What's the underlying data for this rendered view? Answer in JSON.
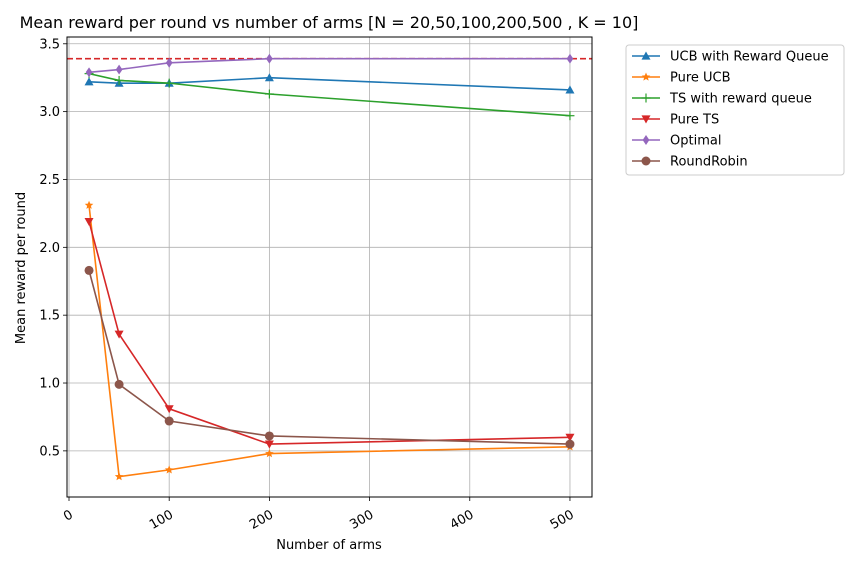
{
  "chart_data": {
    "type": "line",
    "title": "Mean reward per round vs number of arms [N = 20,50,100,200,500 , K = 10]",
    "xlabel": "Number of arms",
    "ylabel": "Mean reward per round",
    "xlim": [
      -2,
      522
    ],
    "ylim": [
      0.16,
      3.55
    ],
    "xticks": [
      0,
      100,
      200,
      300,
      400,
      500
    ],
    "yticks": [
      0.5,
      1.0,
      1.5,
      2.0,
      2.5,
      3.0,
      3.5
    ],
    "xtick_labels": [
      "0",
      "100",
      "200",
      "300",
      "400",
      "500"
    ],
    "ytick_labels": [
      "0.5",
      "1.0",
      "1.5",
      "2.0",
      "2.5",
      "3.0",
      "3.5"
    ],
    "grid": true,
    "legend_position": "outside-top-right",
    "x": [
      20,
      50,
      100,
      200,
      500
    ],
    "reference_line": {
      "y": 3.39,
      "color": "#d62728",
      "style": "dashed"
    },
    "series": [
      {
        "name": "UCB with Reward Queue",
        "color": "#1f77b4",
        "marker": "triangle-up",
        "values": [
          3.22,
          3.21,
          3.21,
          3.25,
          3.16
        ]
      },
      {
        "name": "Pure UCB",
        "color": "#ff7f0e",
        "marker": "star",
        "values": [
          2.31,
          0.31,
          0.36,
          0.48,
          0.53
        ]
      },
      {
        "name": "TS with reward queue",
        "color": "#2ca02c",
        "marker": "plus",
        "values": [
          3.28,
          3.23,
          3.21,
          3.13,
          2.97
        ]
      },
      {
        "name": "Pure TS",
        "color": "#d62728",
        "marker": "triangle-down",
        "values": [
          2.19,
          1.36,
          0.81,
          0.55,
          0.6
        ]
      },
      {
        "name": "Optimal",
        "color": "#9467bd",
        "marker": "diamond",
        "values": [
          3.29,
          3.31,
          3.36,
          3.39,
          3.39
        ]
      },
      {
        "name": "RoundRobin",
        "color": "#8c564b",
        "marker": "circle",
        "values": [
          1.83,
          0.99,
          0.72,
          0.61,
          0.55
        ]
      }
    ]
  }
}
